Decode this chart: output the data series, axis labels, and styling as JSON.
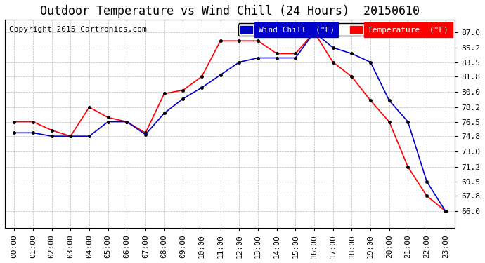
{
  "title": "Outdoor Temperature vs Wind Chill (24 Hours)  20150610",
  "copyright": "Copyright 2015 Cartronics.com",
  "legend_wind_chill": "Wind Chill  (°F)",
  "legend_temperature": "Temperature  (°F)",
  "x_labels": [
    "00:00",
    "01:00",
    "02:00",
    "03:00",
    "04:00",
    "05:00",
    "06:00",
    "07:00",
    "08:00",
    "09:00",
    "10:00",
    "11:00",
    "12:00",
    "13:00",
    "14:00",
    "15:00",
    "16:00",
    "17:00",
    "18:00",
    "19:00",
    "20:00",
    "21:00",
    "22:00",
    "23:00"
  ],
  "temperature": [
    76.5,
    76.5,
    75.5,
    74.8,
    78.2,
    77.0,
    76.5,
    75.2,
    79.8,
    80.2,
    81.8,
    86.0,
    86.0,
    86.0,
    84.5,
    84.5,
    87.0,
    83.5,
    81.8,
    79.0,
    76.5,
    71.2,
    67.8,
    66.0
  ],
  "wind_chill": [
    75.2,
    75.2,
    74.8,
    74.8,
    74.8,
    76.5,
    76.5,
    75.0,
    77.5,
    79.2,
    80.5,
    82.0,
    83.5,
    84.0,
    84.0,
    84.0,
    87.0,
    85.2,
    84.5,
    83.5,
    79.0,
    76.5,
    69.5,
    66.0
  ],
  "ylim_min": 64.0,
  "ylim_max": 88.5,
  "yticks": [
    66.0,
    67.8,
    69.5,
    71.2,
    73.0,
    74.8,
    76.5,
    78.2,
    80.0,
    81.8,
    83.5,
    85.2,
    87.0
  ],
  "temp_color": "#ff0000",
  "wind_color": "#0000cc",
  "bg_color": "#ffffff",
  "plot_bg_color": "#ffffff",
  "grid_color": "#aaaaaa",
  "title_fontsize": 12,
  "axis_fontsize": 8,
  "copyright_fontsize": 8
}
